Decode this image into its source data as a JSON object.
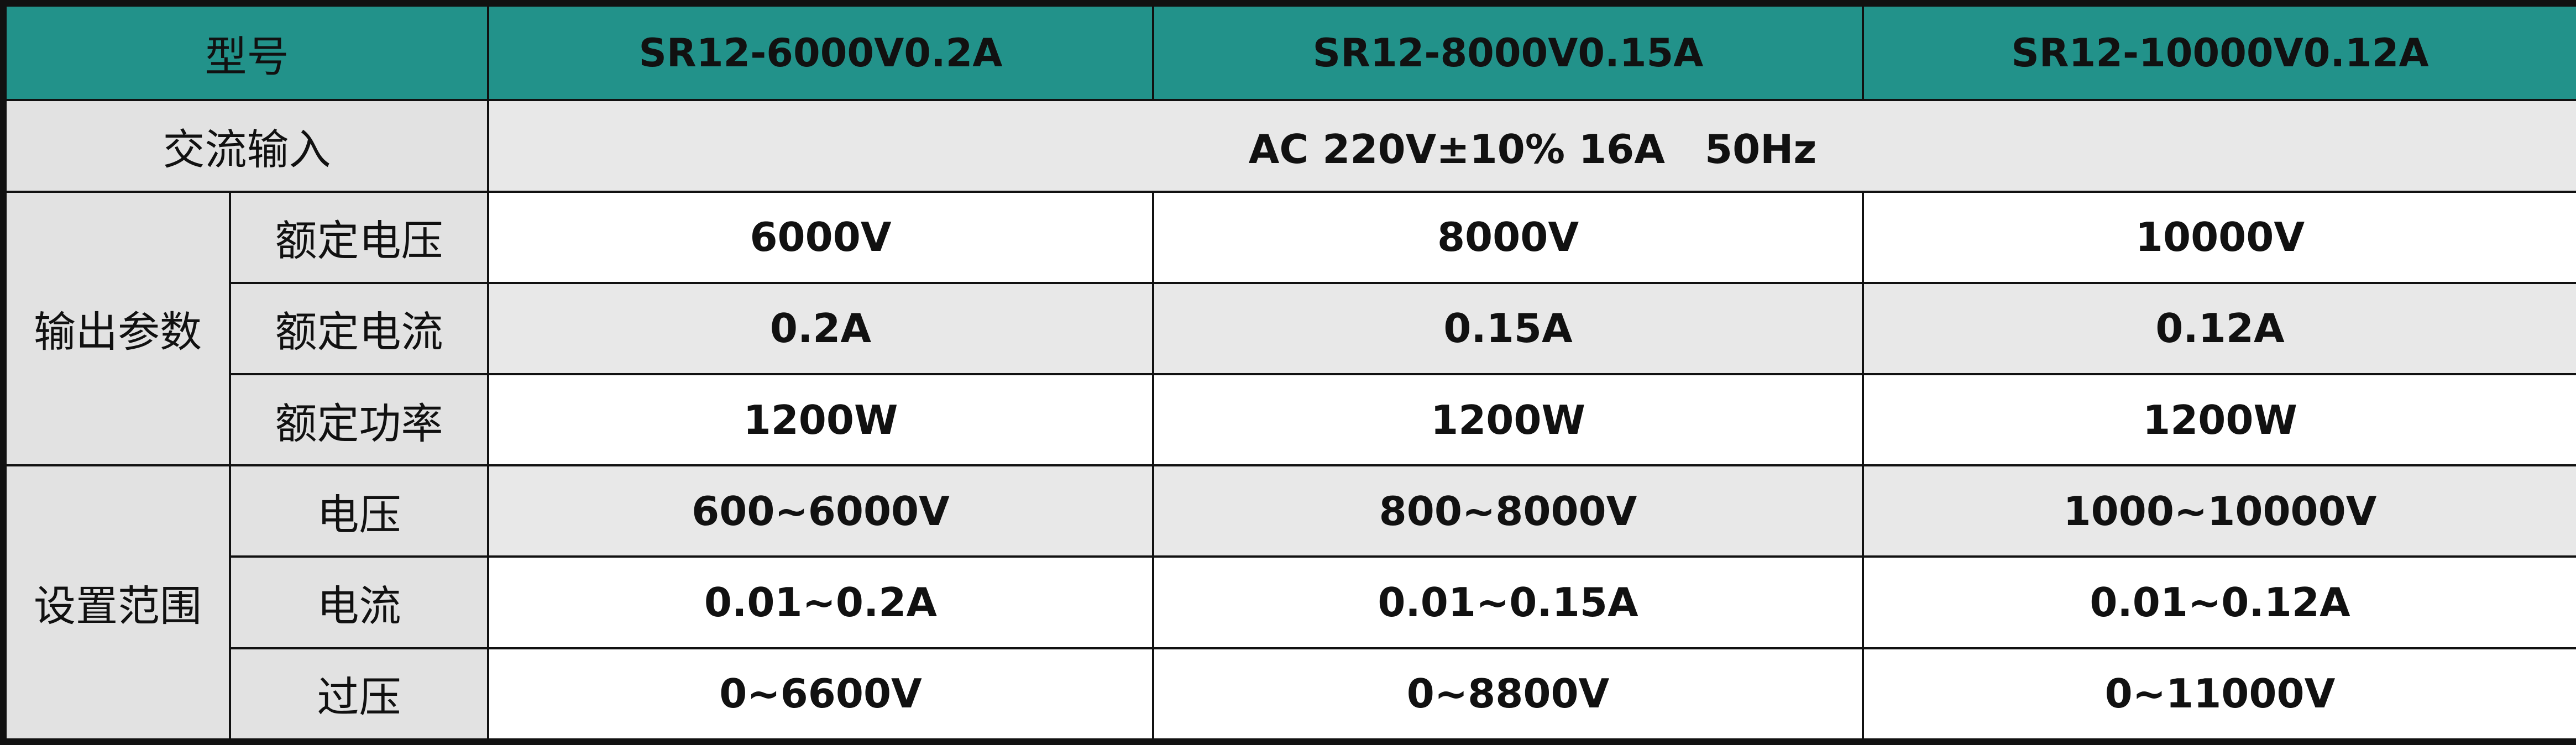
{
  "table": {
    "header": [
      "型号",
      "SR12-6000V0.2A",
      "SR12-8000V0.15A",
      "SR12-10000V0.12A"
    ],
    "ac_input": {
      "label": "交流输入",
      "value": "AC 220V±10% 16A　50Hz"
    },
    "groups": [
      {
        "label": "输出参数",
        "rows": [
          {
            "label": "额定电压",
            "values": [
              "6000V",
              "8000V",
              "10000V"
            ]
          },
          {
            "label": "额定电流",
            "values": [
              "0.2A",
              "0.15A",
              "0.12A"
            ]
          },
          {
            "label": "额定功率",
            "values": [
              "1200W",
              "1200W",
              "1200W"
            ]
          }
        ]
      },
      {
        "label": "设置范围",
        "rows": [
          {
            "label": "电压",
            "values": [
              "600~6000V",
              "800~8000V",
              "1000~10000V"
            ]
          },
          {
            "label": "电流",
            "values": [
              "0.01~0.2A",
              "0.01~0.15A",
              "0.01~0.12A"
            ]
          },
          {
            "label": "过压",
            "values": [
              "0~6600V",
              "0~8800V",
              "0~11000V"
            ]
          }
        ]
      }
    ]
  }
}
